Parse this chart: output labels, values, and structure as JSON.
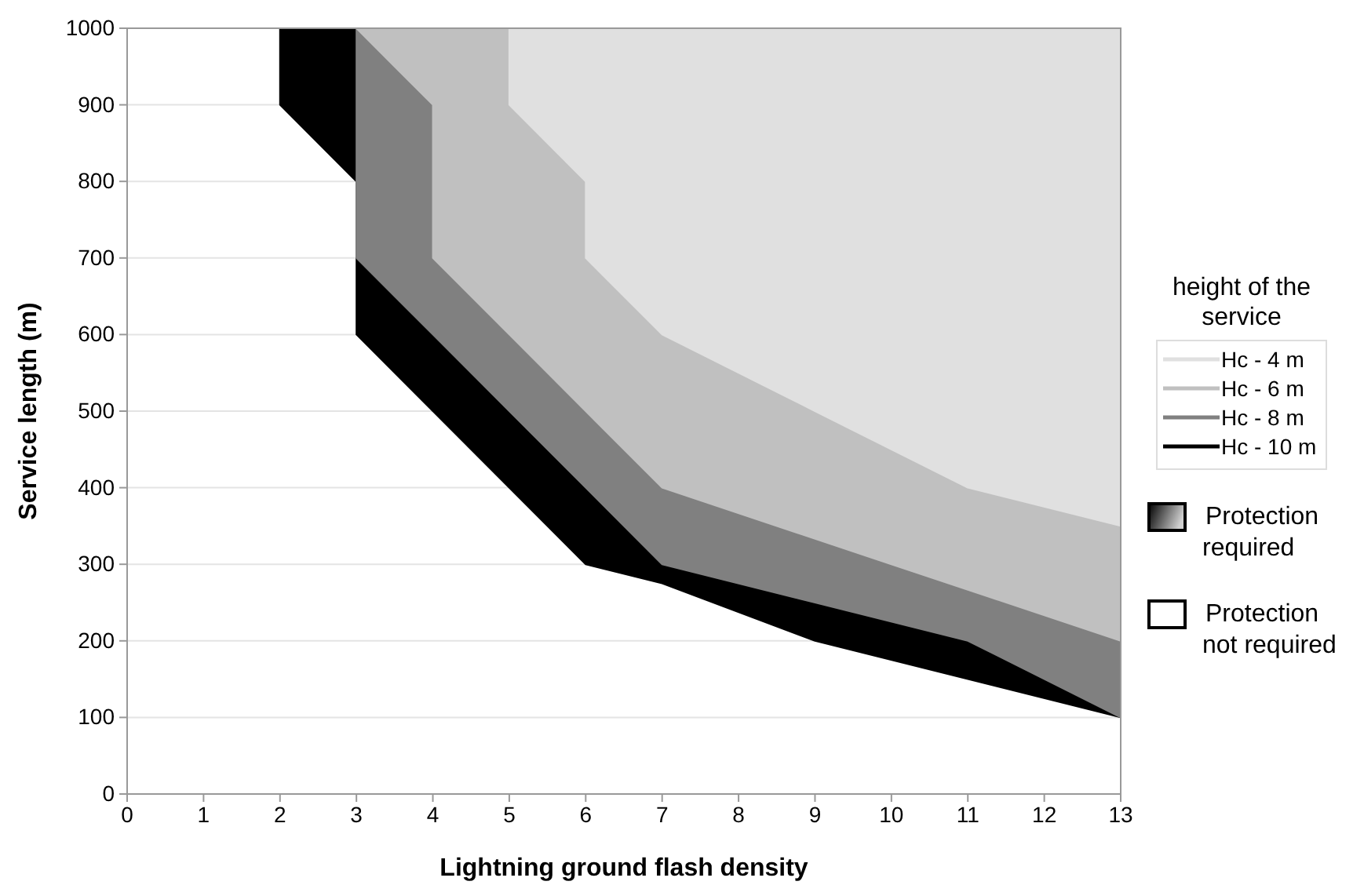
{
  "chart_data": {
    "type": "area",
    "xlabel": "Lightning ground flash density",
    "ylabel": "Service length (m)",
    "legend_title": "height of the service",
    "legend": "right",
    "grid": "y",
    "xlim": [
      0,
      13
    ],
    "xticks": [
      0,
      1,
      2,
      3,
      4,
      5,
      6,
      7,
      8,
      9,
      10,
      11,
      12,
      13
    ],
    "ylim": [
      0,
      1000
    ],
    "yticks": [
      0,
      100,
      200,
      300,
      400,
      500,
      600,
      700,
      800,
      900,
      1000
    ],
    "series": [
      {
        "name": "Hc - 4 m",
        "color": "#e0e0e0",
        "x": [
          5,
          5,
          6,
          6,
          7,
          9,
          11,
          13,
          13
        ],
        "values": [
          1000,
          900,
          800,
          700,
          600,
          500,
          400,
          350,
          1000
        ]
      },
      {
        "name": "Hc - 6 m",
        "color": "#c0c0c0",
        "x": [
          3,
          4,
          4,
          5,
          6,
          7,
          10,
          13,
          13
        ],
        "values": [
          1000,
          900,
          700,
          600,
          500,
          400,
          300,
          200,
          1000
        ]
      },
      {
        "name": "Hc - 8 m",
        "color": "#808080",
        "x": [
          3,
          3,
          4,
          5,
          6,
          7,
          9,
          11,
          13,
          13
        ],
        "values": [
          1000,
          700,
          600,
          500,
          400,
          300,
          250,
          200,
          100,
          1000
        ]
      },
      {
        "name": "Hc - 10 m",
        "color": "#000000",
        "x": [
          2,
          2,
          3,
          3,
          6,
          7,
          9,
          13,
          13
        ],
        "values": [
          1000,
          900,
          800,
          600,
          300,
          275,
          200,
          100,
          1000
        ]
      }
    ],
    "annotations": [
      "Protection required",
      "Protection not required"
    ]
  }
}
